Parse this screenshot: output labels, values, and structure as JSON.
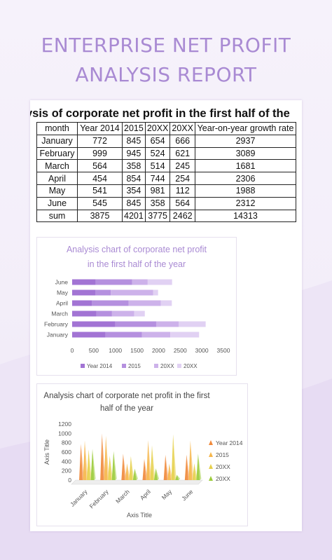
{
  "page": {
    "title_line1": "ENTERPRISE NET PROFIT",
    "title_line2": "ANALYSIS REPORT",
    "table_title": "ysis of corporate net profit in the first half of the",
    "accent": "#a98ad3"
  },
  "table": {
    "headers": [
      "month",
      "Year 2014",
      "2015",
      "20XX",
      "20XX",
      "Year-on-year growth rate"
    ],
    "rows": [
      [
        "January",
        "772",
        "845",
        "654",
        "666",
        "2937"
      ],
      [
        "February",
        "999",
        "945",
        "524",
        "621",
        "3089"
      ],
      [
        "March",
        "564",
        "358",
        "514",
        "245",
        "1681"
      ],
      [
        "April",
        "454",
        "854",
        "744",
        "254",
        "2306"
      ],
      [
        "May",
        "541",
        "354",
        "981",
        "112",
        "1988"
      ],
      [
        "June",
        "545",
        "845",
        "358",
        "564",
        "2312"
      ],
      [
        "sum",
        "3875",
        "4201",
        "3775",
        "2462",
        "14313"
      ]
    ]
  },
  "chart_data": [
    {
      "type": "bar",
      "orientation": "horizontal",
      "stacked": true,
      "title_line1": "Analysis chart of corporate net profit",
      "title_line2": "in the first half of the year",
      "title_color": "#a98ad3",
      "categories": [
        "January",
        "February",
        "March",
        "April",
        "May",
        "June"
      ],
      "series": [
        {
          "name": "Year 2014",
          "values": [
            772,
            999,
            564,
            454,
            541,
            545
          ],
          "color": "#a274d4"
        },
        {
          "name": "2015",
          "values": [
            845,
            945,
            358,
            854,
            354,
            845
          ],
          "color": "#b590df"
        },
        {
          "name": "20XX",
          "values": [
            654,
            524,
            514,
            744,
            981,
            358
          ],
          "color": "#cdb2ea"
        },
        {
          "name": "20XX",
          "values": [
            666,
            621,
            245,
            254,
            112,
            564
          ],
          "color": "#e1d1f3"
        }
      ],
      "xticks": [
        "0",
        "500",
        "1000",
        "1500",
        "2000",
        "2500",
        "3000",
        "3500"
      ],
      "xlim": [
        0,
        3500
      ],
      "legend_position": "bottom"
    },
    {
      "type": "bar",
      "orientation": "vertical",
      "style": "3d-cone",
      "title_line1": "Analysis chart of corporate net profit in the first",
      "title_line2": "half of the year",
      "title_color": "#444444",
      "categories": [
        "January",
        "February",
        "March",
        "April",
        "May",
        "June"
      ],
      "series": [
        {
          "name": "Year 2014",
          "values": [
            772,
            999,
            564,
            454,
            541,
            545
          ],
          "color": "#f08a3c"
        },
        {
          "name": "2015",
          "values": [
            845,
            945,
            358,
            854,
            354,
            845
          ],
          "color": "#f6b64a"
        },
        {
          "name": "20XX",
          "values": [
            654,
            524,
            514,
            744,
            981,
            358
          ],
          "color": "#e6d04a"
        },
        {
          "name": "20XX",
          "values": [
            666,
            621,
            245,
            254,
            112,
            564
          ],
          "color": "#9ccc3c"
        }
      ],
      "yticks": [
        "0",
        "200",
        "400",
        "600",
        "800",
        "1000",
        "1200"
      ],
      "ylim": [
        0,
        1200
      ],
      "xlabel": "Axis Title",
      "ylabel": "Axis Title",
      "legend_position": "right"
    }
  ]
}
